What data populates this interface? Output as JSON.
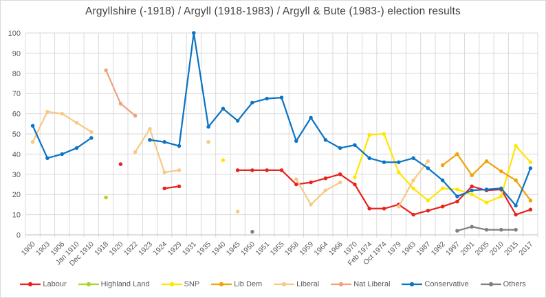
{
  "chart_data": {
    "type": "line",
    "title": "Argyllshire (-1918) / Argyll (1918-1983) / Argyll & Bute (1983-) election results",
    "xlabel": "",
    "ylabel": "",
    "ylim": [
      0,
      100
    ],
    "ytick_step": 10,
    "grid": true,
    "legend_position": "bottom",
    "categories": [
      "1900",
      "1903",
      "1906",
      "Jan 1910",
      "Dec 1910",
      "1918",
      "1920",
      "1922",
      "1923",
      "1924",
      "1929",
      "1931",
      "1935",
      "1940",
      "1945",
      "1950",
      "1951",
      "1955",
      "1958",
      "1959",
      "1964",
      "1966",
      "1970",
      "Feb 1974",
      "Oct 1974",
      "1979",
      "1983",
      "1987",
      "1992",
      "1997",
      "2001",
      "2005",
      "2010",
      "2015",
      "2017"
    ],
    "series": [
      {
        "name": "Labour",
        "color": "#e8231e",
        "values": [
          null,
          null,
          null,
          null,
          null,
          null,
          35,
          null,
          null,
          23,
          24,
          null,
          null,
          null,
          32,
          32,
          32,
          32,
          25,
          26,
          28,
          30,
          25,
          13,
          13,
          15,
          10,
          12,
          14,
          16.5,
          24,
          22,
          22.5,
          10,
          12.5
        ]
      },
      {
        "name": "Highland Land",
        "color": "#a6d927",
        "values": [
          null,
          null,
          null,
          null,
          null,
          18.5,
          null,
          null,
          null,
          null,
          null,
          null,
          null,
          null,
          null,
          null,
          null,
          null,
          null,
          null,
          null,
          null,
          null,
          null,
          null,
          null,
          null,
          null,
          null,
          null,
          null,
          null,
          null,
          null,
          null
        ]
      },
      {
        "name": "SNP",
        "color": "#ffe600",
        "values": [
          null,
          null,
          null,
          null,
          null,
          null,
          null,
          null,
          null,
          null,
          null,
          null,
          null,
          37,
          null,
          null,
          null,
          null,
          null,
          null,
          null,
          null,
          28.5,
          49.5,
          50,
          31,
          23,
          17,
          23,
          22.5,
          20,
          16,
          19,
          44,
          36
        ]
      },
      {
        "name": "Lib Dem",
        "color": "#f0a30a",
        "values": [
          null,
          null,
          null,
          null,
          null,
          null,
          null,
          null,
          null,
          null,
          null,
          null,
          null,
          null,
          null,
          null,
          null,
          null,
          null,
          null,
          null,
          null,
          null,
          null,
          null,
          null,
          null,
          null,
          34.5,
          40,
          29.5,
          36.5,
          31.5,
          27,
          17
        ]
      },
      {
        "name": "Liberal",
        "color": "#f6c985",
        "values": [
          46,
          61,
          60,
          55.5,
          51,
          null,
          null,
          41,
          52.5,
          31,
          32,
          null,
          46,
          null,
          11.5,
          null,
          null,
          null,
          27.5,
          15,
          22,
          26,
          null,
          null,
          null,
          14,
          27,
          36.5,
          null,
          null,
          null,
          null,
          null,
          null,
          null
        ]
      },
      {
        "name": "Nat Liberal",
        "color": "#efa380",
        "values": [
          null,
          null,
          null,
          null,
          null,
          81.5,
          65,
          59,
          null,
          null,
          null,
          null,
          null,
          null,
          null,
          null,
          null,
          null,
          null,
          null,
          null,
          null,
          null,
          null,
          null,
          null,
          null,
          null,
          null,
          null,
          null,
          null,
          null,
          null,
          null
        ]
      },
      {
        "name": "Conservative",
        "color": "#0b74c4",
        "values": [
          54,
          38,
          40,
          43,
          48,
          null,
          null,
          null,
          47,
          46,
          44,
          100,
          53.5,
          62.5,
          56.5,
          65.5,
          67.5,
          68,
          46.5,
          58,
          47,
          43,
          44.5,
          38,
          36,
          36,
          38,
          33,
          27,
          19,
          22,
          22.5,
          23,
          14.5,
          33
        ]
      },
      {
        "name": "Others",
        "color": "#7f7f7f",
        "values": [
          null,
          null,
          null,
          null,
          null,
          null,
          null,
          null,
          null,
          null,
          null,
          null,
          null,
          null,
          null,
          1.5,
          null,
          null,
          null,
          null,
          null,
          null,
          null,
          null,
          null,
          null,
          null,
          null,
          null,
          2,
          4,
          2.5,
          2.5,
          2.5,
          null
        ]
      }
    ]
  },
  "style_colors": {
    "gridline": "#d9d9d9",
    "axis_line": "#bfbfbf",
    "tick_label": "#595959",
    "title_text": "#404040"
  }
}
